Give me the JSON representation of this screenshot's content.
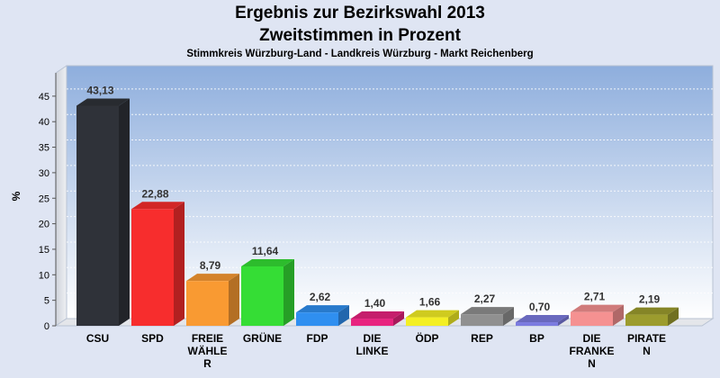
{
  "chart_data": {
    "type": "bar",
    "title": "Ergebnis zur Bezirkswahl 2013",
    "subtitle_line": "Zweitstimmen in Prozent",
    "subtitle": "Stimmkreis Würzburg-Land - Landkreis Würzburg - Markt Reichenberg",
    "xlabel": "",
    "ylabel": "%",
    "ylim": [
      0,
      50
    ],
    "yticks": [
      "0",
      "5",
      "10",
      "15",
      "20",
      "25",
      "30",
      "35",
      "40",
      "45"
    ],
    "grid": true,
    "categories": [
      "CSU",
      "SPD",
      "FREIE WÄHLE R",
      "GRÜNE",
      "FDP",
      "DIE LINKE",
      "ÖDP",
      "REP",
      "BP",
      "DIE FRANKE N",
      "PIRATE N"
    ],
    "category_lines": [
      [
        "CSU"
      ],
      [
        "SPD"
      ],
      [
        "FREIE",
        "WÄHLE",
        "R"
      ],
      [
        "GRÜNE"
      ],
      [
        "FDP"
      ],
      [
        "DIE",
        "LINKE"
      ],
      [
        "ÖDP"
      ],
      [
        "REP"
      ],
      [
        "BP"
      ],
      [
        "DIE",
        "FRANKE",
        "N"
      ],
      [
        "PIRATE",
        "N"
      ]
    ],
    "values": [
      43.13,
      22.88,
      8.79,
      11.64,
      2.62,
      1.4,
      1.66,
      2.27,
      0.7,
      2.71,
      2.19
    ],
    "value_labels": [
      "43,13",
      "22,88",
      "8,79",
      "11,64",
      "2,62",
      "1,40",
      "1,66",
      "2,27",
      "0,70",
      "2,71",
      "2,19"
    ],
    "colors": [
      "#2f3239",
      "#f72d2d",
      "#f99a32",
      "#35dd35",
      "#2f8ff0",
      "#e8237f",
      "#f3ef24",
      "#909090",
      "#7b7be0",
      "#f59191",
      "#9c9c2e"
    ]
  }
}
